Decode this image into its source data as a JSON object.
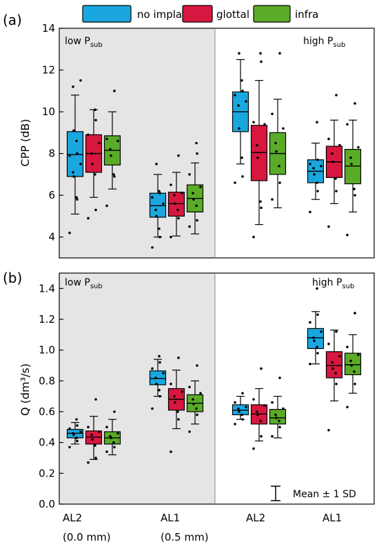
{
  "legend": {
    "items": [
      {
        "label": "no implant",
        "color": "#1aa7e0"
      },
      {
        "label": "glottal",
        "color": "#d7173f"
      },
      {
        "label": "infra",
        "color": "#5aab27"
      }
    ]
  },
  "x_labels": {
    "groups": [
      {
        "label": "AL2",
        "sub": "(0.0 mm)"
      },
      {
        "label": "AL1",
        "sub": "(0.5 mm)"
      },
      {
        "label": "AL2",
        "sub": ""
      },
      {
        "label": "AL1",
        "sub": ""
      }
    ]
  },
  "regions": {
    "low": "low P",
    "high": "high P",
    "sub": "sub"
  },
  "note": "Mean ± 1 SD",
  "chart_data": [
    {
      "type": "box",
      "panel_label": "(a)",
      "ylabel": "CPP (dB)",
      "ylim": [
        3,
        14
      ],
      "yticks": [
        4,
        6,
        8,
        10,
        12,
        14
      ],
      "categories": [
        "AL2",
        "AL1",
        "AL2",
        "AL1"
      ],
      "shaded_region": "low Psub",
      "series": [
        {
          "name": "no implant",
          "boxes": [
            {
              "min": 5.1,
              "q1": 6.9,
              "median": 7.95,
              "q3": 9.05,
              "max": 10.8,
              "mean": 7.95,
              "points": [
                4.2,
                5.8,
                5.9,
                6.9,
                7.1,
                7.5,
                7.9,
                8.0,
                8.6,
                9.1,
                11.2,
                11.5
              ]
            },
            {
              "min": 4.0,
              "q1": 4.95,
              "median": 5.5,
              "q3": 6.1,
              "max": 7.0,
              "mean": 5.5,
              "points": [
                3.5,
                4.0,
                4.4,
                5.0,
                5.3,
                5.6,
                5.9,
                6.1,
                6.2,
                7.5
              ]
            },
            {
              "min": 7.5,
              "q1": 9.05,
              "median": 10.0,
              "q3": 10.95,
              "max": 12.5,
              "mean": 10.0,
              "points": [
                6.6,
                6.9,
                7.8,
                9.2,
                10.3,
                10.5,
                10.8,
                11.0,
                11.5,
                12.8
              ]
            },
            {
              "min": 5.8,
              "q1": 6.6,
              "median": 7.15,
              "q3": 7.7,
              "max": 8.5,
              "mean": 7.2,
              "points": [
                5.2,
                6.2,
                6.6,
                7.0,
                7.3,
                7.4,
                7.5,
                7.7,
                9.5
              ]
            }
          ]
        },
        {
          "name": "glottal",
          "boxes": [
            {
              "min": 5.9,
              "q1": 7.1,
              "median": 8.0,
              "q3": 8.9,
              "max": 10.1,
              "mean": 8.0,
              "points": [
                4.9,
                5.3,
                7.0,
                7.5,
                8.0,
                8.5,
                8.9,
                9.6,
                10.1
              ]
            },
            {
              "min": 4.05,
              "q1": 5.0,
              "median": 5.6,
              "q3": 6.15,
              "max": 7.1,
              "mean": 5.6,
              "points": [
                4.0,
                4.9,
                5.3,
                5.6,
                6.0,
                6.1,
                6.5,
                7.9
              ]
            },
            {
              "min": 4.6,
              "q1": 6.7,
              "median": 8.05,
              "q3": 9.35,
              "max": 11.5,
              "mean": 8.1,
              "points": [
                4.0,
                5.4,
                5.7,
                7.8,
                8.4,
                9.4,
                9.5,
                12.4,
                12.8
              ]
            },
            {
              "min": 5.6,
              "q1": 6.85,
              "median": 7.6,
              "q3": 8.35,
              "max": 9.6,
              "mean": 7.6,
              "points": [
                4.5,
                6.2,
                6.8,
                7.6,
                8.0,
                8.4,
                8.7,
                10.8
              ]
            }
          ]
        },
        {
          "name": "infra",
          "boxes": [
            {
              "min": 6.3,
              "q1": 7.45,
              "median": 8.15,
              "q3": 8.85,
              "max": 10.0,
              "mean": 8.15,
              "points": [
                5.5,
                6.9,
                7.0,
                7.9,
                8.2,
                8.6,
                8.7,
                11.0
              ]
            },
            {
              "min": 4.15,
              "q1": 5.2,
              "median": 5.85,
              "q3": 6.5,
              "max": 7.55,
              "mean": 5.85,
              "points": [
                4.5,
                4.8,
                5.5,
                5.8,
                6.1,
                6.4,
                7.0,
                8.0,
                8.5
              ]
            },
            {
              "min": 5.4,
              "q1": 7.0,
              "median": 8.0,
              "q3": 9.0,
              "max": 10.6,
              "mean": 8.0,
              "points": [
                5.8,
                6.6,
                7.4,
                8.1,
                8.5,
                9.2,
                9.9,
                12.8
              ]
            },
            {
              "min": 5.2,
              "q1": 6.55,
              "median": 7.4,
              "q3": 8.2,
              "max": 9.6,
              "mean": 7.4,
              "points": [
                4.1,
                6.0,
                6.3,
                7.5,
                7.8,
                8.3,
                9.4,
                10.4
              ]
            }
          ]
        }
      ]
    },
    {
      "type": "box",
      "panel_label": "(b)",
      "ylabel": "Q (dm³/s)",
      "ylim": [
        0.0,
        1.5
      ],
      "yticks": [
        0.0,
        0.2,
        0.4,
        0.6,
        0.8,
        1.0,
        1.2,
        1.4
      ],
      "categories": [
        "AL2",
        "AL1",
        "AL2",
        "AL1"
      ],
      "shaded_region": "low Psub",
      "series": [
        {
          "name": "no implant",
          "boxes": [
            {
              "min": 0.39,
              "q1": 0.43,
              "median": 0.46,
              "q3": 0.485,
              "max": 0.53,
              "mean": 0.46,
              "points": [
                0.37,
                0.41,
                0.43,
                0.45,
                0.46,
                0.47,
                0.49,
                0.51,
                0.55
              ]
            },
            {
              "min": 0.7,
              "q1": 0.775,
              "median": 0.815,
              "q3": 0.865,
              "max": 0.94,
              "mean": 0.82,
              "points": [
                0.62,
                0.7,
                0.74,
                0.78,
                0.82,
                0.85,
                0.88,
                0.92,
                0.96
              ]
            },
            {
              "min": 0.55,
              "q1": 0.58,
              "median": 0.61,
              "q3": 0.645,
              "max": 0.7,
              "mean": 0.61,
              "points": [
                0.52,
                0.55,
                0.58,
                0.6,
                0.62,
                0.63,
                0.66,
                0.72
              ]
            },
            {
              "min": 0.91,
              "q1": 1.01,
              "median": 1.08,
              "q3": 1.14,
              "max": 1.25,
              "mean": 1.08,
              "points": [
                0.91,
                0.98,
                1.02,
                1.06,
                1.08,
                1.12,
                1.18,
                1.23,
                1.4
              ]
            }
          ]
        },
        {
          "name": "glottal",
          "boxes": [
            {
              "min": 0.29,
              "q1": 0.39,
              "median": 0.435,
              "q3": 0.475,
              "max": 0.57,
              "mean": 0.43,
              "points": [
                0.27,
                0.3,
                0.38,
                0.42,
                0.45,
                0.47,
                0.5,
                0.68
              ]
            },
            {
              "min": 0.49,
              "q1": 0.61,
              "median": 0.68,
              "q3": 0.75,
              "max": 0.87,
              "mean": 0.68,
              "points": [
                0.34,
                0.55,
                0.6,
                0.66,
                0.7,
                0.73,
                0.78,
                0.95
              ]
            },
            {
              "min": 0.41,
              "q1": 0.52,
              "median": 0.585,
              "q3": 0.645,
              "max": 0.75,
              "mean": 0.58,
              "points": [
                0.36,
                0.44,
                0.54,
                0.58,
                0.6,
                0.64,
                0.68,
                0.88
              ]
            },
            {
              "min": 0.67,
              "q1": 0.82,
              "median": 0.9,
              "q3": 0.99,
              "max": 1.13,
              "mean": 0.9,
              "points": [
                0.48,
                0.78,
                0.85,
                0.88,
                0.92,
                0.96,
                1.04,
                1.12
              ]
            }
          ]
        },
        {
          "name": "infra",
          "boxes": [
            {
              "min": 0.32,
              "q1": 0.39,
              "median": 0.43,
              "q3": 0.47,
              "max": 0.55,
              "mean": 0.43,
              "points": [
                0.34,
                0.37,
                0.4,
                0.43,
                0.44,
                0.46,
                0.5,
                0.6
              ]
            },
            {
              "min": 0.52,
              "q1": 0.6,
              "median": 0.655,
              "q3": 0.71,
              "max": 0.8,
              "mean": 0.66,
              "points": [
                0.47,
                0.58,
                0.62,
                0.65,
                0.68,
                0.72,
                0.76,
                0.9
              ]
            },
            {
              "min": 0.43,
              "q1": 0.52,
              "median": 0.56,
              "q3": 0.615,
              "max": 0.7,
              "mean": 0.56,
              "points": [
                0.44,
                0.5,
                0.54,
                0.56,
                0.58,
                0.62,
                0.66,
                0.82
              ]
            },
            {
              "min": 0.72,
              "q1": 0.84,
              "median": 0.905,
              "q3": 0.98,
              "max": 1.1,
              "mean": 0.9,
              "points": [
                0.63,
                0.78,
                0.86,
                0.9,
                0.93,
                0.97,
                1.02,
                1.24
              ]
            }
          ]
        }
      ]
    }
  ]
}
